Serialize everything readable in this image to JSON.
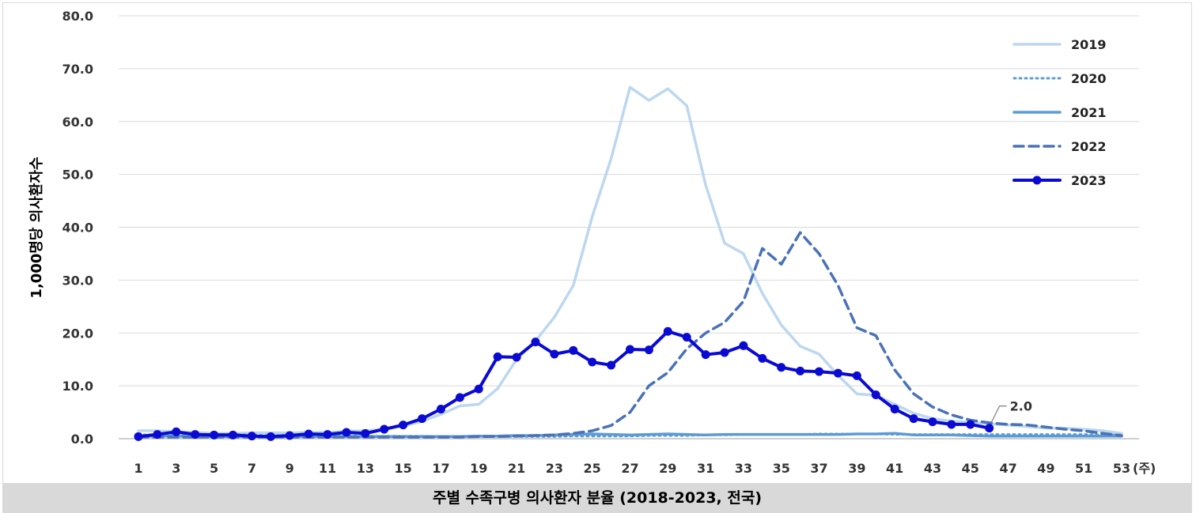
{
  "chart_data": {
    "type": "line",
    "title": "주별 수족구병 의사환자 분율 (2018-2023, 전국)",
    "ylabel": "1,000명당 의사환자수",
    "xunit": "(주)",
    "ylim": [
      0,
      80
    ],
    "yticks": [
      "0.0",
      "10.0",
      "20.0",
      "30.0",
      "40.0",
      "50.0",
      "60.0",
      "70.0",
      "80.0"
    ],
    "xticks": [
      1,
      3,
      5,
      7,
      9,
      11,
      13,
      15,
      17,
      19,
      21,
      23,
      25,
      27,
      29,
      31,
      33,
      35,
      37,
      39,
      41,
      43,
      45,
      47,
      49,
      51,
      53
    ],
    "grid": true,
    "legend_position": "top-right",
    "annotation": {
      "text": "2.0",
      "series": "2023",
      "x": 46
    },
    "series": [
      {
        "name": "2019",
        "color": "#bdd7ee",
        "style": "solid",
        "markers": false,
        "values": [
          1.5,
          1.5,
          1.3,
          1.2,
          1.0,
          1.0,
          1.1,
          1.1,
          1.1,
          1.2,
          1.2,
          1.4,
          1.5,
          1.8,
          2.4,
          3.3,
          4.6,
          6.2,
          6.5,
          9.5,
          15.0,
          18.5,
          23.0,
          29.0,
          42.0,
          53.0,
          66.5,
          64.0,
          66.2,
          63.0,
          48.0,
          37.0,
          35.0,
          27.5,
          21.5,
          17.5,
          16.0,
          12.0,
          8.5,
          8.2,
          6.5,
          4.8,
          3.8,
          3.3,
          3.1,
          2.8,
          2.6,
          2.3,
          2.0,
          2.0,
          1.8,
          1.5,
          1.0
        ]
      },
      {
        "name": "2020",
        "color": "#5b9bd5",
        "style": "dotted",
        "markers": false,
        "values": [
          0.7,
          0.8,
          0.8,
          0.8,
          0.8,
          0.8,
          0.7,
          0.6,
          0.6,
          0.5,
          0.5,
          0.6,
          0.5,
          0.5,
          0.5,
          0.5,
          0.4,
          0.4,
          0.4,
          0.4,
          0.4,
          0.4,
          0.4,
          0.5,
          0.5,
          0.5,
          0.5,
          0.6,
          0.6,
          0.6,
          0.7,
          0.7,
          0.8,
          0.8,
          0.8,
          0.8,
          0.9,
          0.9,
          0.9,
          0.9,
          0.8,
          0.8,
          0.8,
          0.8,
          0.8,
          0.8,
          0.8,
          0.8,
          0.8,
          0.8,
          0.8,
          0.7,
          0.7
        ]
      },
      {
        "name": "2021",
        "color": "#5b9bd5",
        "style": "solid",
        "markers": false,
        "values": [
          0.5,
          0.5,
          0.5,
          0.4,
          0.4,
          0.4,
          0.4,
          0.4,
          0.4,
          0.4,
          0.4,
          0.4,
          0.4,
          0.4,
          0.4,
          0.4,
          0.4,
          0.4,
          0.5,
          0.5,
          0.6,
          0.6,
          0.7,
          0.8,
          0.9,
          0.8,
          0.7,
          0.8,
          0.9,
          0.8,
          0.7,
          0.8,
          0.8,
          0.8,
          0.8,
          0.8,
          0.8,
          0.8,
          0.9,
          0.9,
          1.0,
          0.7,
          0.7,
          0.7,
          0.6,
          0.5,
          0.5,
          0.5,
          0.5,
          0.5,
          0.5,
          0.5,
          0.5
        ]
      },
      {
        "name": "2022",
        "color": "#4a72b8",
        "style": "dashed",
        "markers": false,
        "values": [
          0.3,
          0.3,
          0.3,
          0.3,
          0.3,
          0.3,
          0.3,
          0.3,
          0.3,
          0.3,
          0.3,
          0.3,
          0.3,
          0.3,
          0.3,
          0.3,
          0.3,
          0.3,
          0.4,
          0.4,
          0.5,
          0.6,
          0.7,
          1.0,
          1.5,
          2.5,
          5.0,
          10.0,
          12.5,
          17.0,
          20.0,
          22.0,
          26.0,
          36.0,
          33.0,
          39.0,
          35.0,
          29.0,
          21.0,
          19.5,
          13.0,
          8.5,
          6.0,
          4.5,
          3.5,
          3.0,
          2.7,
          2.6,
          2.2,
          1.8,
          1.5,
          1.0,
          0.6
        ]
      },
      {
        "name": "2023",
        "color": "#0a0ad2",
        "style": "solid",
        "markers": true,
        "values": [
          0.4,
          0.8,
          1.3,
          0.8,
          0.7,
          0.7,
          0.5,
          0.4,
          0.6,
          0.9,
          0.8,
          1.2,
          1.0,
          1.8,
          2.6,
          3.8,
          5.6,
          7.8,
          9.4,
          15.5,
          15.4,
          18.3,
          16.0,
          16.7,
          14.5,
          13.9,
          16.9,
          16.8,
          20.3,
          19.2,
          15.9,
          16.3,
          17.6,
          15.2,
          13.5,
          12.8,
          12.7,
          12.4,
          11.9,
          8.3,
          5.6,
          3.8,
          3.2,
          2.7,
          2.7,
          2.0
        ]
      }
    ]
  }
}
